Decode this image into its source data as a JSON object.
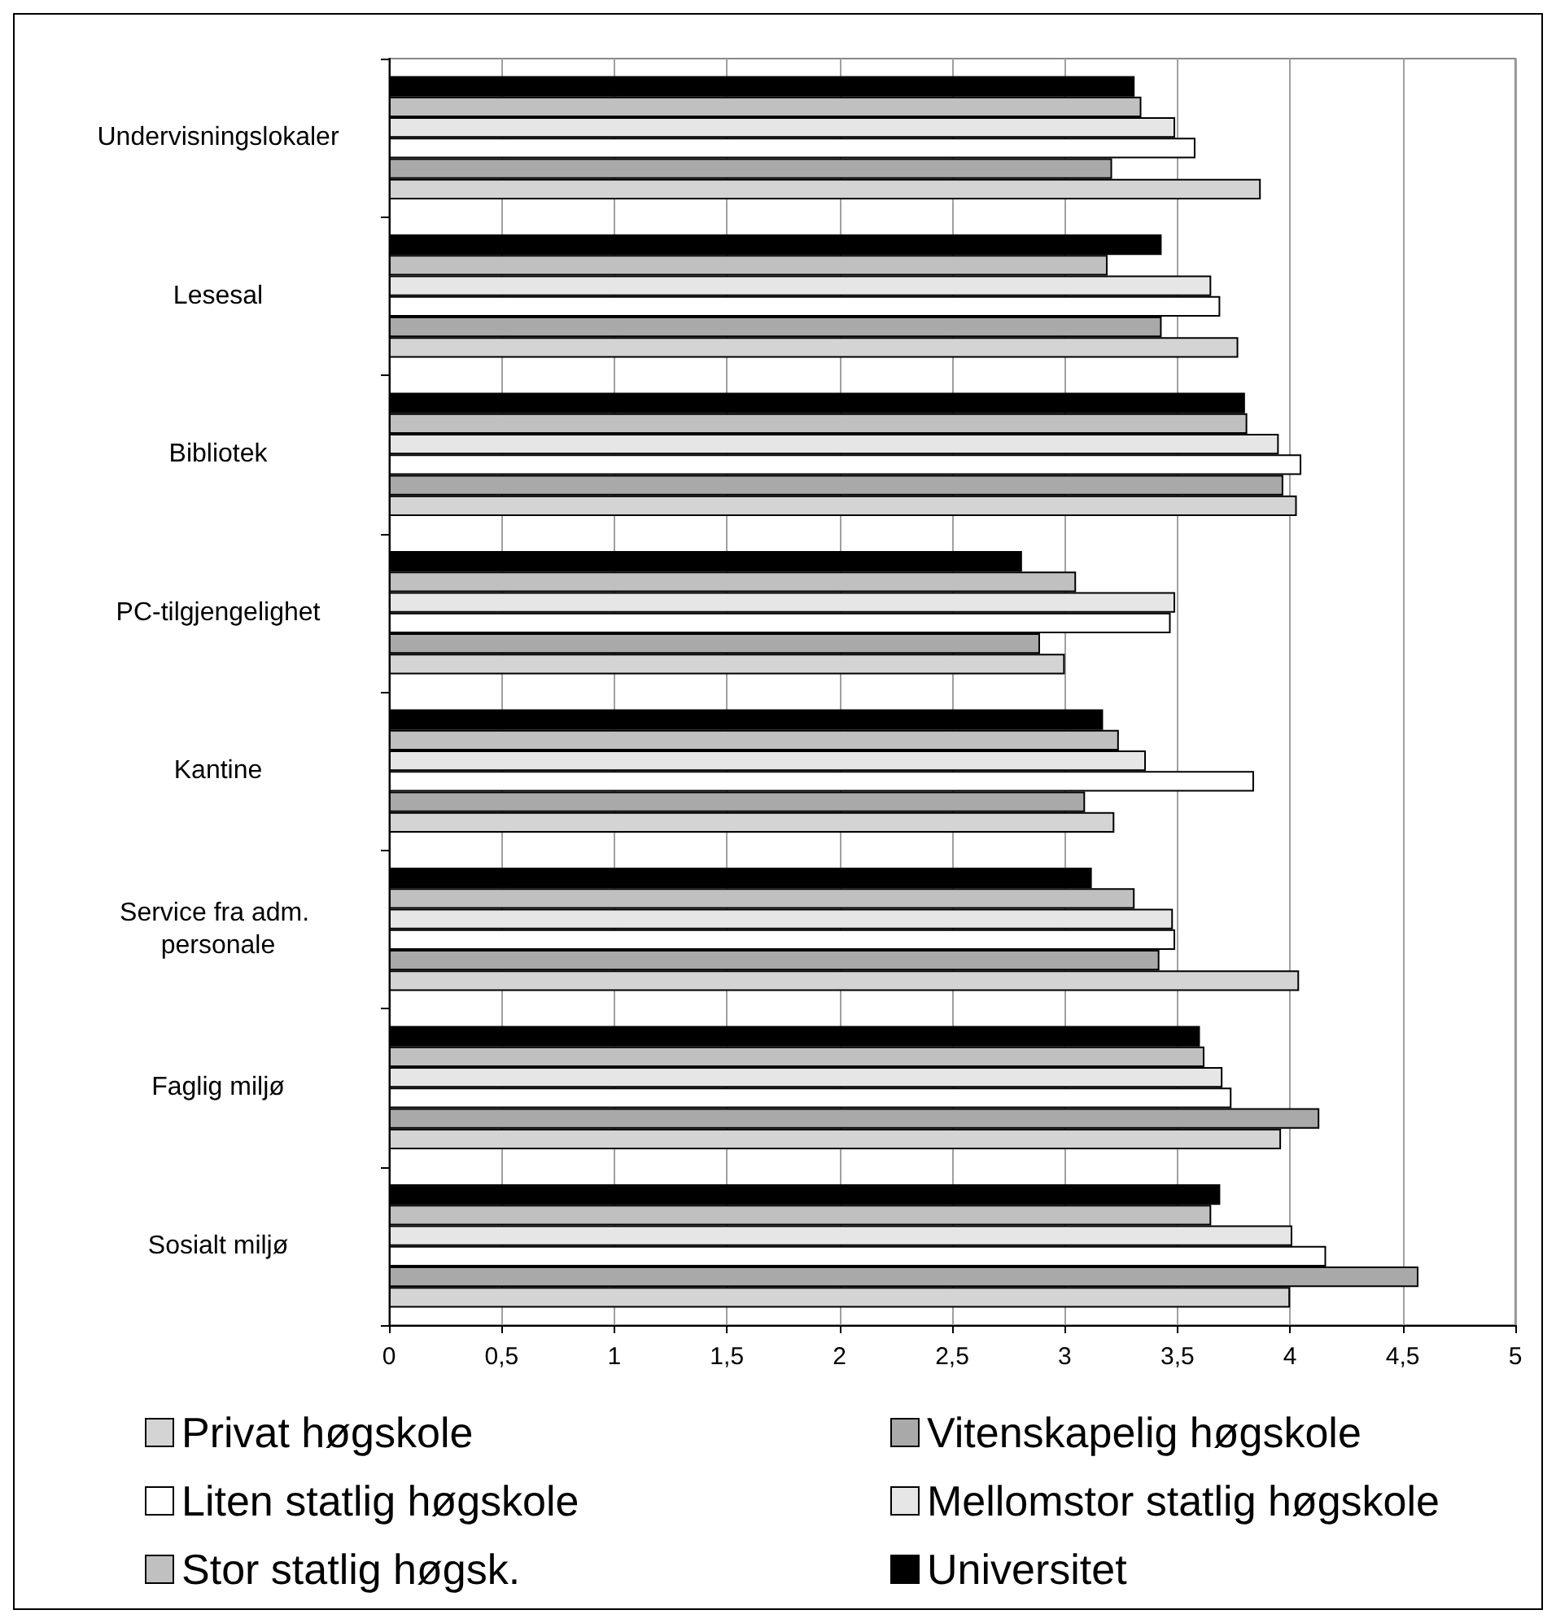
{
  "chart_data": {
    "type": "bar",
    "orientation": "horizontal",
    "categories": [
      "Undervisningslokaler",
      "Lesesal",
      "Bibliotek",
      "PC-tilgjengelighet",
      "Kantine",
      "Service fra adm. personale",
      "Faglig miljø",
      "Sosialt miljø"
    ],
    "series": [
      {
        "name": "Privat høgskole",
        "color": "#d4d4d4",
        "values": [
          3.87,
          3.77,
          4.03,
          3.0,
          3.22,
          4.04,
          3.96,
          4.0
        ]
      },
      {
        "name": "Vitenskapelig høgskole",
        "color": "#a9a9a9",
        "values": [
          3.21,
          3.43,
          3.97,
          2.89,
          3.09,
          3.42,
          4.13,
          4.57
        ]
      },
      {
        "name": "Liten statlig høgskole",
        "color": "#ffffff",
        "values": [
          3.58,
          3.69,
          4.05,
          3.47,
          3.84,
          3.49,
          3.74,
          4.16
        ]
      },
      {
        "name": "Mellomstor statlig høgskole",
        "color": "#e6e6e6",
        "values": [
          3.49,
          3.65,
          3.95,
          3.49,
          3.36,
          3.48,
          3.7,
          4.01
        ]
      },
      {
        "name": "Stor statlig høgsk.",
        "color": "#c0c0c0",
        "values": [
          3.34,
          3.19,
          3.81,
          3.05,
          3.24,
          3.31,
          3.62,
          3.65
        ]
      },
      {
        "name": "Universitet",
        "color": "#000000",
        "values": [
          3.31,
          3.43,
          3.8,
          2.81,
          3.17,
          3.12,
          3.6,
          3.69
        ]
      }
    ],
    "xlim": [
      0,
      5
    ],
    "xticks": [
      0,
      {
        "value": 0.5,
        "label": "0,5"
      },
      1,
      {
        "value": 1.5,
        "label": "1,5"
      },
      2,
      {
        "value": 2.5,
        "label": "2,5"
      },
      3,
      {
        "value": 3.5,
        "label": "3,5"
      },
      4,
      {
        "value": 4.5,
        "label": "4,5"
      },
      5
    ],
    "grid": "x",
    "legend": "bottom"
  }
}
